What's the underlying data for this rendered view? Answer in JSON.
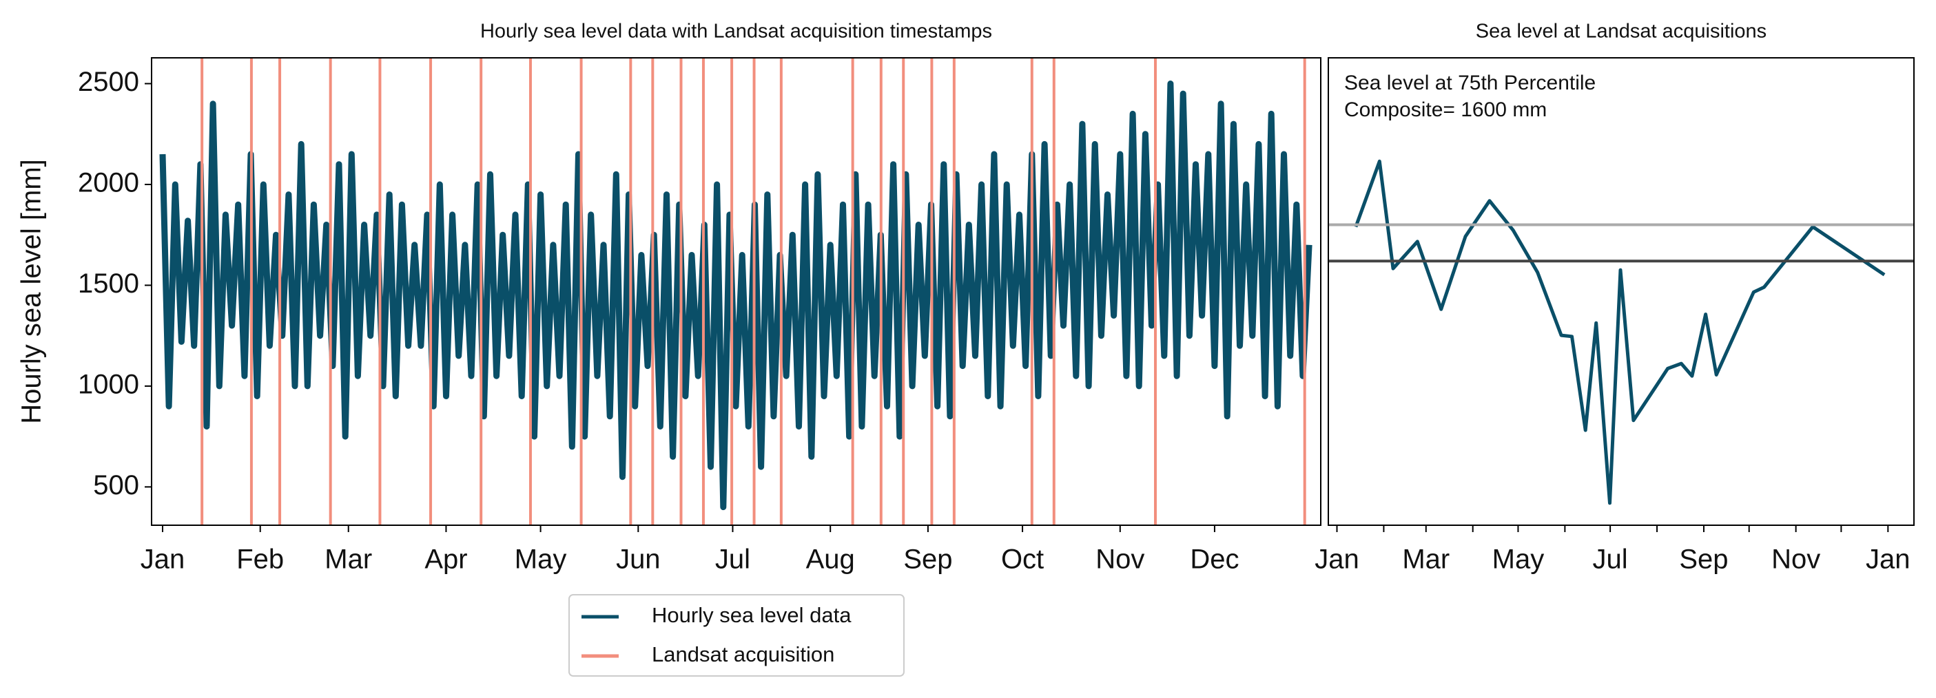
{
  "chart_data": [
    {
      "type": "line",
      "title": "Hourly sea level data with Landsat acquisition timestamps",
      "ylabel": "Hourly sea level [mm]",
      "xlim": [
        -3.5,
        367.7
      ],
      "ylim": [
        310,
        2628
      ],
      "xticks": [
        {
          "value": 0,
          "label": "Jan"
        },
        {
          "value": 31,
          "label": "Feb"
        },
        {
          "value": 59,
          "label": "Mar"
        },
        {
          "value": 90,
          "label": "Apr"
        },
        {
          "value": 120,
          "label": "May"
        },
        {
          "value": 151,
          "label": "Jun"
        },
        {
          "value": 181,
          "label": "Jul"
        },
        {
          "value": 212,
          "label": "Aug"
        },
        {
          "value": 243,
          "label": "Sep"
        },
        {
          "value": 273,
          "label": "Oct"
        },
        {
          "value": 304,
          "label": "Nov"
        },
        {
          "value": 334,
          "label": "Dec"
        }
      ],
      "yticks": [
        500,
        1000,
        1500,
        2000,
        2500
      ],
      "legend": "below",
      "x": [
        0,
        2,
        4,
        6,
        8,
        10,
        12,
        14,
        16,
        18,
        20,
        22,
        24,
        26,
        28,
        30,
        32,
        34,
        36,
        38,
        40,
        42,
        44,
        46,
        48,
        50,
        52,
        54,
        56,
        58,
        60,
        62,
        64,
        66,
        68,
        70,
        72,
        74,
        76,
        78,
        80,
        82,
        84,
        86,
        88,
        90,
        92,
        94,
        96,
        98,
        100,
        102,
        104,
        106,
        108,
        110,
        112,
        114,
        116,
        118,
        120,
        122,
        124,
        126,
        128,
        130,
        132,
        134,
        136,
        138,
        140,
        142,
        144,
        146,
        148,
        150,
        152,
        154,
        156,
        158,
        160,
        162,
        164,
        166,
        168,
        170,
        172,
        174,
        176,
        178,
        180,
        182,
        184,
        186,
        188,
        190,
        192,
        194,
        196,
        198,
        200,
        202,
        204,
        206,
        208,
        210,
        212,
        214,
        216,
        218,
        220,
        222,
        224,
        226,
        228,
        230,
        232,
        234,
        236,
        238,
        240,
        242,
        244,
        246,
        248,
        250,
        252,
        254,
        256,
        258,
        260,
        262,
        264,
        266,
        268,
        270,
        272,
        274,
        276,
        278,
        280,
        282,
        284,
        286,
        288,
        290,
        292,
        294,
        296,
        298,
        300,
        302,
        304,
        306,
        308,
        310,
        312,
        314,
        316,
        318,
        320,
        322,
        324,
        326,
        328,
        330,
        332,
        334,
        336,
        338,
        340,
        342,
        344,
        346,
        348,
        350,
        352,
        354,
        356,
        358,
        360,
        362,
        364
      ],
      "series": [
        {
          "name": "Hourly sea level data",
          "color": "#0a4f68",
          "values": [
            2150,
            900,
            2000,
            1220,
            1820,
            1200,
            2100,
            800,
            2400,
            1000,
            1850,
            1300,
            1900,
            1050,
            2150,
            950,
            2000,
            1200,
            1750,
            1250,
            1950,
            1000,
            2200,
            1000,
            1900,
            1250,
            1800,
            1100,
            2100,
            750,
            2150,
            1050,
            1800,
            1250,
            1850,
            1000,
            1950,
            950,
            1900,
            1200,
            1700,
            1200,
            1850,
            900,
            2000,
            950,
            1850,
            1150,
            1700,
            1050,
            2000,
            850,
            2050,
            1050,
            1750,
            1150,
            1850,
            950,
            2000,
            750,
            1950,
            1000,
            1700,
            1050,
            1900,
            700,
            2150,
            750,
            1850,
            1050,
            1700,
            850,
            2050,
            550,
            1950,
            900,
            1650,
            1100,
            1750,
            800,
            1950,
            650,
            1900,
            950,
            1650,
            1050,
            1800,
            600,
            2000,
            400,
            1850,
            900,
            1650,
            800,
            1900,
            600,
            1950,
            850,
            1650,
            1050,
            1750,
            800,
            2000,
            650,
            2050,
            950,
            1700,
            1050,
            1900,
            750,
            2050,
            800,
            1900,
            1050,
            1750,
            900,
            2100,
            750,
            2050,
            1000,
            1800,
            1150,
            1900,
            900,
            2100,
            850,
            2050,
            1100,
            1800,
            1150,
            2000,
            950,
            2150,
            900,
            2000,
            1200,
            1850,
            1100,
            2150,
            950,
            2200,
            1150,
            1900,
            1300,
            2000,
            1050,
            2300,
            1000,
            2200,
            1250,
            1950,
            1350,
            2150,
            1050,
            2350,
            1000,
            2250,
            1300,
            2000,
            1150,
            2500,
            1050,
            2450,
            1250,
            2100,
            1350,
            2150,
            1100,
            2400,
            850,
            2300,
            1200,
            2000,
            1250,
            2200,
            950,
            2350,
            900,
            2150,
            1150,
            1900,
            1050,
            1700
          ]
        }
      ],
      "vlines": {
        "name": "Landsat acquisition",
        "color": "#f28e7d",
        "x": [
          12.5,
          28.2,
          37.2,
          53.3,
          69.0,
          85.1,
          101.1,
          116.8,
          132.9,
          148.6,
          155.6,
          164.6,
          171.7,
          180.7,
          187.8,
          196.4,
          219.1,
          228.1,
          235.2,
          244.2,
          251.3,
          276.0,
          283.0,
          315.2,
          362.6
        ]
      }
    },
    {
      "type": "line",
      "title": "Sea level at Landsat acquisitions",
      "annotation": [
        "Sea level at 75th Percentile",
        "Composite= 1600 mm"
      ],
      "xlim": [
        -5.7,
        382.2
      ],
      "ylim": [
        310,
        2628
      ],
      "xticks": [
        {
          "value": 0,
          "label": "Jan"
        },
        {
          "value": 59,
          "label": "Mar"
        },
        {
          "value": 120,
          "label": "May"
        },
        {
          "value": 181,
          "label": "Jul"
        },
        {
          "value": 243,
          "label": "Sep"
        },
        {
          "value": 304,
          "label": "Nov"
        },
        {
          "value": 365,
          "label": "Jan"
        }
      ],
      "xminorticks": [
        31,
        90,
        151,
        212,
        273,
        334
      ],
      "hlines": [
        {
          "value": 1800,
          "color": "#aaaaaa"
        },
        {
          "value": 1620,
          "color": "#444444"
        }
      ],
      "x": [
        12.5,
        28.2,
        37.2,
        53.3,
        69.0,
        85.1,
        101.1,
        116.8,
        132.9,
        148.6,
        155.6,
        164.6,
        171.7,
        180.7,
        187.8,
        196.4,
        219.1,
        228.1,
        235.2,
        244.2,
        251.3,
        276.0,
        283.0,
        315.2,
        362.6
      ],
      "series": [
        {
          "color": "#0a4f68",
          "values": [
            1790,
            2115,
            1583,
            1717,
            1381,
            1742,
            1919,
            1772,
            1564,
            1252,
            1246,
            781,
            1313,
            420,
            1576,
            830,
            1087,
            1112,
            1050,
            1356,
            1056,
            1466,
            1491,
            1790,
            1552
          ]
        }
      ]
    }
  ]
}
